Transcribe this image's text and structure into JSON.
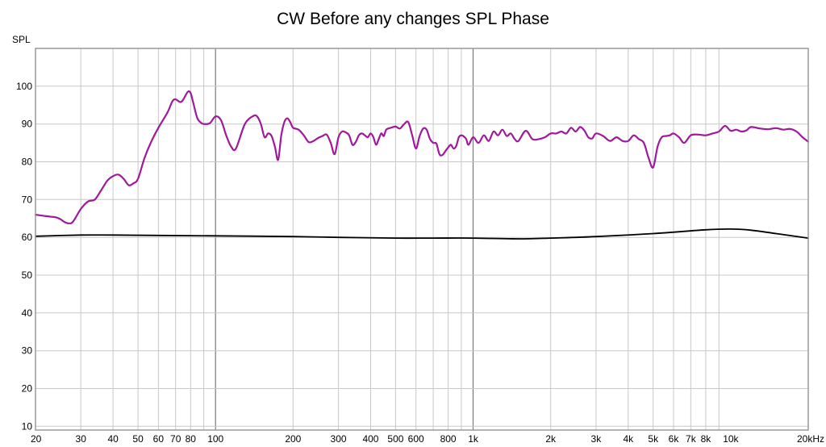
{
  "chart_data": {
    "type": "line",
    "title": "CW Before any changes SPL Phase",
    "ylabel": "SPL",
    "xlabel": "",
    "xscale": "log",
    "xlim": [
      20,
      20000
    ],
    "ylim": [
      9,
      110
    ],
    "grid": true,
    "colors": {
      "spl": "#a0189c",
      "phase": "#000000",
      "grid_minor": "#c8c8c8",
      "grid_major": "#7a7a7a",
      "frame": "#9a9a9a"
    },
    "xticks": [
      {
        "v": 20,
        "label": "20"
      },
      {
        "v": 30,
        "label": "30"
      },
      {
        "v": 40,
        "label": "40"
      },
      {
        "v": 50,
        "label": "50"
      },
      {
        "v": 60,
        "label": "60"
      },
      {
        "v": 70,
        "label": "70"
      },
      {
        "v": 80,
        "label": "80"
      },
      {
        "v": 100,
        "label": "100"
      },
      {
        "v": 200,
        "label": "200"
      },
      {
        "v": 300,
        "label": "300"
      },
      {
        "v": 400,
        "label": "400"
      },
      {
        "v": 500,
        "label": "500"
      },
      {
        "v": 600,
        "label": "600"
      },
      {
        "v": 800,
        "label": "800"
      },
      {
        "v": 1000,
        "label": "1k"
      },
      {
        "v": 2000,
        "label": "2k"
      },
      {
        "v": 3000,
        "label": "3k"
      },
      {
        "v": 4000,
        "label": "4k"
      },
      {
        "v": 5000,
        "label": "5k"
      },
      {
        "v": 6000,
        "label": "6k"
      },
      {
        "v": 7000,
        "label": "7k"
      },
      {
        "v": 8000,
        "label": "8k"
      },
      {
        "v": 10000,
        "label": "10k"
      },
      {
        "v": 20000,
        "label": "20kHz"
      }
    ],
    "yticks": [
      10,
      20,
      30,
      40,
      50,
      60,
      70,
      80,
      90,
      100
    ],
    "series": [
      {
        "name": "SPL",
        "x": [
          20,
          22,
          24,
          25,
          26,
          27,
          28,
          30,
          32,
          34,
          36,
          38,
          40,
          42,
          44,
          46,
          48,
          50,
          53,
          56,
          60,
          65,
          68,
          70,
          73,
          75,
          78,
          80,
          82,
          85,
          88,
          90,
          95,
          100,
          105,
          110,
          115,
          120,
          130,
          140,
          145,
          150,
          155,
          160,
          165,
          170,
          175,
          180,
          185,
          190,
          195,
          200,
          210,
          220,
          230,
          240,
          250,
          260,
          270,
          280,
          290,
          300,
          310,
          320,
          330,
          340,
          350,
          360,
          370,
          380,
          390,
          400,
          410,
          420,
          430,
          440,
          450,
          460,
          480,
          500,
          520,
          540,
          560,
          580,
          600,
          620,
          640,
          660,
          680,
          700,
          720,
          740,
          760,
          780,
          800,
          820,
          840,
          860,
          880,
          900,
          920,
          940,
          960,
          1000,
          1050,
          1100,
          1150,
          1200,
          1250,
          1300,
          1350,
          1400,
          1450,
          1500,
          1600,
          1700,
          1800,
          1900,
          2000,
          2100,
          2200,
          2300,
          2400,
          2500,
          2600,
          2700,
          2800,
          2900,
          3000,
          3200,
          3400,
          3600,
          3800,
          4000,
          4200,
          4400,
          4600,
          4800,
          5000,
          5200,
          5400,
          5600,
          5800,
          6000,
          6300,
          6600,
          7000,
          7500,
          8000,
          8500,
          9000,
          9500,
          10000,
          10500,
          11000,
          11500,
          12000,
          13000,
          14000,
          15000,
          16000,
          17000,
          18000,
          19000,
          20000
        ],
        "y": [
          66,
          65.6,
          65.3,
          64.8,
          64,
          63.7,
          64.2,
          67.5,
          69.5,
          70,
          72.5,
          75,
          76.2,
          76.6,
          75.5,
          73.8,
          74.3,
          75.5,
          81,
          85,
          89,
          93,
          96,
          96.5,
          95.8,
          96.5,
          98.5,
          98.2,
          95.5,
          91.5,
          90.3,
          90,
          90.2,
          92,
          91,
          87,
          84,
          83.5,
          90,
          92.1,
          92,
          90,
          86.5,
          87.5,
          86.8,
          84,
          80.5,
          87,
          90.5,
          91.5,
          90.5,
          89,
          88.5,
          87,
          85.2,
          85.5,
          86.3,
          86.8,
          87.2,
          85,
          82,
          86.5,
          88,
          87.8,
          87,
          84.5,
          85.2,
          87,
          87.5,
          87,
          86.5,
          87.5,
          86.5,
          84.5,
          86,
          87.5,
          86.8,
          88.5,
          89,
          89.3,
          88.8,
          90,
          90.5,
          87,
          83.5,
          86.8,
          88.8,
          88.5,
          86,
          85,
          84.8,
          82,
          81.8,
          82.8,
          83.8,
          84.5,
          83.5,
          84.2,
          86.5,
          87,
          86.7,
          86,
          84.5,
          86.5,
          85,
          87,
          85.5,
          88,
          87,
          88.5,
          86.8,
          87.5,
          86,
          85.5,
          88.2,
          86,
          86,
          86.5,
          87.5,
          87.5,
          88,
          87.5,
          89,
          88,
          89.2,
          88.3,
          86.5,
          86.2,
          87.5,
          86.8,
          85.5,
          86.5,
          85.5,
          85.5,
          87,
          86,
          85,
          81,
          78.5,
          84,
          86.5,
          86.8,
          87,
          87.5,
          86.5,
          85,
          87,
          87.2,
          87,
          87.5,
          88,
          89.5,
          88.2,
          88.5,
          88,
          88.3,
          89.2,
          88.8,
          88.6,
          88.9,
          88.5,
          88.7,
          88,
          86.5,
          85.3
        ],
        "color": "#a0189c"
      },
      {
        "name": "Phase",
        "x": [
          20,
          30,
          40,
          60,
          100,
          200,
          300,
          500,
          700,
          1000,
          1500,
          2000,
          3000,
          5000,
          8000,
          10000,
          12000,
          15000,
          20000
        ],
        "y": [
          60.3,
          60.6,
          60.6,
          60.5,
          60.4,
          60.2,
          60,
          59.8,
          59.8,
          59.8,
          59.6,
          59.8,
          60.2,
          61,
          62,
          62.2,
          61.9,
          61,
          59.8
        ],
        "color": "#000000"
      }
    ]
  }
}
